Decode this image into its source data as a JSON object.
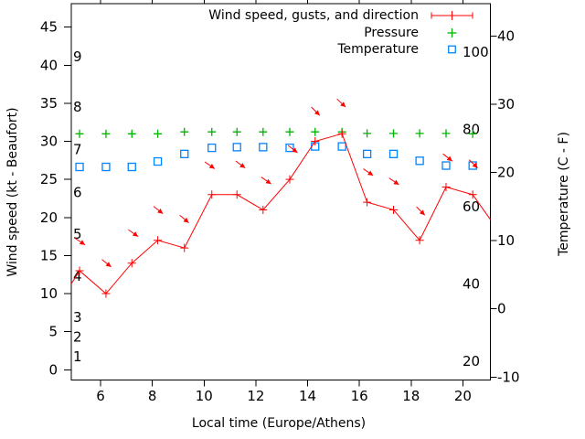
{
  "chart_data": {
    "type": "line",
    "colors": {
      "wind": "#ff0000",
      "pressure": "#00b400",
      "temperature": "#0084ff",
      "text": "#000000",
      "border": "#000000"
    },
    "x_axis": {
      "label": "Local time (Europe/Athens)",
      "ticks": [
        6,
        8,
        10,
        12,
        14,
        16,
        18,
        20
      ],
      "range": [
        4.87,
        21.07
      ]
    },
    "y_left": {
      "label": "Wind speed (kt - Beaufort)",
      "ticks": [
        0,
        5,
        10,
        15,
        20,
        25,
        30,
        35,
        40,
        45
      ],
      "range": [
        -1.37,
        48.08
      ],
      "beaufort_labels": [
        {
          "text": "9",
          "at_kt": 41.1
        },
        {
          "text": "8",
          "at_kt": 34.5
        },
        {
          "text": "7",
          "at_kt": 28.9
        },
        {
          "text": "6",
          "at_kt": 23.3
        },
        {
          "text": "5",
          "at_kt": 17.8
        },
        {
          "text": "4",
          "at_kt": 12.3
        },
        {
          "text": "3",
          "at_kt": 6.9
        },
        {
          "text": "2",
          "at_kt": 4.3
        },
        {
          "text": "1",
          "at_kt": 1.7
        }
      ]
    },
    "y_right": {
      "label": "Temperature (C - F)",
      "ticks": [
        -10,
        0,
        10,
        20,
        30,
        40
      ],
      "range": [
        -10.46,
        44.73
      ]
    },
    "inner_right_axis": {
      "labels": [
        "100",
        "80",
        "60",
        "40",
        "20"
      ],
      "values": [
        100,
        80,
        60,
        40,
        20
      ],
      "range": [
        15.1,
        112.6
      ]
    },
    "hours": [
      5.19,
      6.21,
      7.21,
      8.21,
      9.24,
      10.3,
      11.27,
      12.28,
      13.31,
      14.29,
      15.33,
      16.3,
      17.32,
      18.33,
      19.35,
      20.38
    ],
    "wind": {
      "name": "Wind speed, gusts, and direction",
      "values_kt": [
        13,
        10,
        14,
        17,
        16,
        23,
        23,
        21,
        25,
        30,
        31,
        22,
        21,
        17,
        24,
        23
      ],
      "edge_left": {
        "h": 4.87,
        "kt": 11.3
      },
      "edge_right": {
        "h": 21.07,
        "kt": 19.7
      }
    },
    "gust_arrows": [
      {
        "tip_h": 5.4,
        "tip_kt": 16.4,
        "angle_deg": 34
      },
      {
        "tip_h": 6.41,
        "tip_kt": 13.5,
        "angle_deg": 39
      },
      {
        "tip_h": 7.45,
        "tip_kt": 17.5,
        "angle_deg": 35
      },
      {
        "tip_h": 8.41,
        "tip_kt": 20.5,
        "angle_deg": 38
      },
      {
        "tip_h": 9.41,
        "tip_kt": 19.3,
        "angle_deg": 40
      },
      {
        "tip_h": 10.41,
        "tip_kt": 26.4,
        "angle_deg": 35
      },
      {
        "tip_h": 11.59,
        "tip_kt": 26.5,
        "angle_deg": 36
      },
      {
        "tip_h": 12.59,
        "tip_kt": 24.4,
        "angle_deg": 35
      },
      {
        "tip_h": 13.61,
        "tip_kt": 28.5,
        "angle_deg": 38
      },
      {
        "tip_h": 14.47,
        "tip_kt": 33.4,
        "angle_deg": 45
      },
      {
        "tip_h": 15.47,
        "tip_kt": 34.5,
        "angle_deg": 43
      },
      {
        "tip_h": 16.53,
        "tip_kt": 25.5,
        "angle_deg": 35
      },
      {
        "tip_h": 17.53,
        "tip_kt": 24.3,
        "angle_deg": 34
      },
      {
        "tip_h": 18.53,
        "tip_kt": 20.3,
        "angle_deg": 45
      },
      {
        "tip_h": 19.59,
        "tip_kt": 27.4,
        "angle_deg": 38
      },
      {
        "tip_h": 20.57,
        "tip_kt": 26.5,
        "angle_deg": 44
      }
    ],
    "pressure": {
      "name": "Pressure",
      "values_inner_scale": [
        78.9,
        78.9,
        78.9,
        78.9,
        79.4,
        79.4,
        79.4,
        79.4,
        79.4,
        79.4,
        79.4,
        79.0,
        79.0,
        79.0,
        79.0,
        78.9
      ]
    },
    "temperature": {
      "name": "Temperature",
      "values_c": [
        20.8,
        20.8,
        20.8,
        21.6,
        22.7,
        23.6,
        23.7,
        23.7,
        23.6,
        23.8,
        23.8,
        22.7,
        22.7,
        21.7,
        21.0,
        21.0
      ]
    }
  },
  "legend": {
    "entries": [
      {
        "label": "Wind speed, gusts, and direction",
        "series": "wind"
      },
      {
        "label": "Pressure",
        "series": "pressure"
      },
      {
        "label": "Temperature",
        "series": "temperature"
      }
    ]
  }
}
